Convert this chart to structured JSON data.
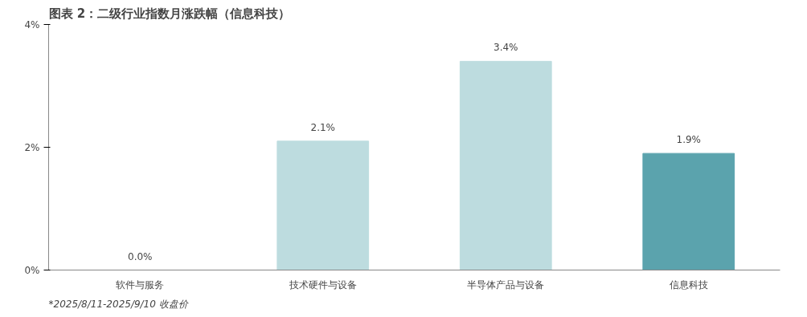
{
  "chart_data": {
    "type": "bar",
    "title": "图表 2：二级行业指数月涨跌幅（信息科技）",
    "categories": [
      "软件与服务",
      "技术硬件与设备",
      "半导体产品与设备",
      "信息科技"
    ],
    "values": [
      0.0,
      2.1,
      3.4,
      1.9
    ],
    "colors": [
      "#bddcdf",
      "#bddcdf",
      "#bddcdf",
      "#5ba3ad"
    ],
    "value_labels": [
      "0.0%",
      "2.1%",
      "3.4%",
      "1.9%"
    ],
    "ylim": [
      0,
      4
    ],
    "yticks": [
      {
        "value": 0,
        "label": "0%"
      },
      {
        "value": 2,
        "label": "2%"
      },
      {
        "value": 4,
        "label": "4%"
      }
    ],
    "grid": false,
    "annotations": [
      "*2025/8/11-2025/9/10 收盘价"
    ]
  }
}
